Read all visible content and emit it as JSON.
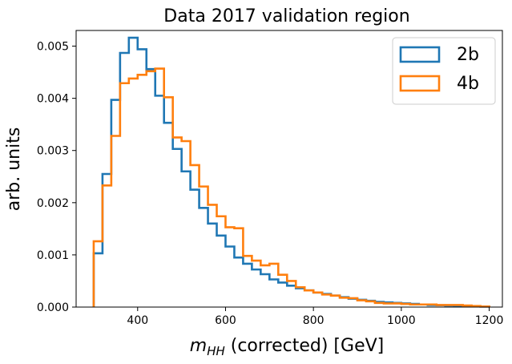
{
  "chart_data": {
    "type": "histogram",
    "title": "Data 2017 validation region",
    "xlabel": {
      "var": "m",
      "sub": "HH",
      "rest": " (corrected) [GeV]"
    },
    "ylabel": "arb. units",
    "xlim": [
      260,
      1230
    ],
    "ylim": [
      0,
      0.0053
    ],
    "x_ticks": [
      400,
      600,
      800,
      1000,
      1200
    ],
    "y_ticks": [
      0.0,
      0.001,
      0.002,
      0.003,
      0.004,
      0.005
    ],
    "y_tick_labels": [
      "0.000",
      "0.001",
      "0.002",
      "0.003",
      "0.004",
      "0.005"
    ],
    "grid": false,
    "legend_position": "top-right",
    "bin_edges": [
      300,
      320,
      340,
      360,
      380,
      400,
      420,
      440,
      460,
      480,
      500,
      520,
      540,
      560,
      580,
      600,
      620,
      640,
      660,
      680,
      700,
      720,
      740,
      760,
      780,
      800,
      820,
      840,
      860,
      880,
      900,
      920,
      940,
      960,
      980,
      1000,
      1020,
      1040,
      1060,
      1080,
      1100,
      1120,
      1140,
      1160,
      1180,
      1200
    ],
    "series": [
      {
        "name": "2b",
        "color": "#1f77b4",
        "values": [
          0.00103,
          0.00255,
          0.00397,
          0.00487,
          0.00516,
          0.00494,
          0.00456,
          0.00405,
          0.00353,
          0.00303,
          0.0026,
          0.00225,
          0.0019,
          0.0016,
          0.00137,
          0.00116,
          0.00095,
          0.00083,
          0.00072,
          0.00063,
          0.00053,
          0.00047,
          0.00041,
          0.00036,
          0.00032,
          0.00028,
          0.00025,
          0.00022,
          0.00019,
          0.00016,
          0.00014,
          0.00012,
          0.0001,
          9e-05,
          8e-05,
          7e-05,
          6e-05,
          5e-05,
          4e-05,
          3.5e-05,
          3e-05,
          2.5e-05,
          2e-05,
          1.5e-05,
          1e-05
        ]
      },
      {
        "name": "4b",
        "color": "#ff7f0e",
        "values": [
          0.00126,
          0.00233,
          0.00328,
          0.00429,
          0.00438,
          0.00445,
          0.00452,
          0.00457,
          0.00402,
          0.00325,
          0.00318,
          0.00272,
          0.00231,
          0.00196,
          0.00174,
          0.00153,
          0.00151,
          0.00098,
          0.00089,
          0.0008,
          0.00083,
          0.00062,
          0.0005,
          0.00038,
          0.00032,
          0.00028,
          0.00024,
          0.00022,
          0.00018,
          0.00017,
          0.00013,
          0.00011,
          8e-05,
          7e-05,
          7e-05,
          6e-05,
          5e-05,
          5e-05,
          5e-05,
          4e-05,
          4e-05,
          4e-05,
          3e-05,
          2e-05,
          1e-05
        ]
      }
    ]
  }
}
